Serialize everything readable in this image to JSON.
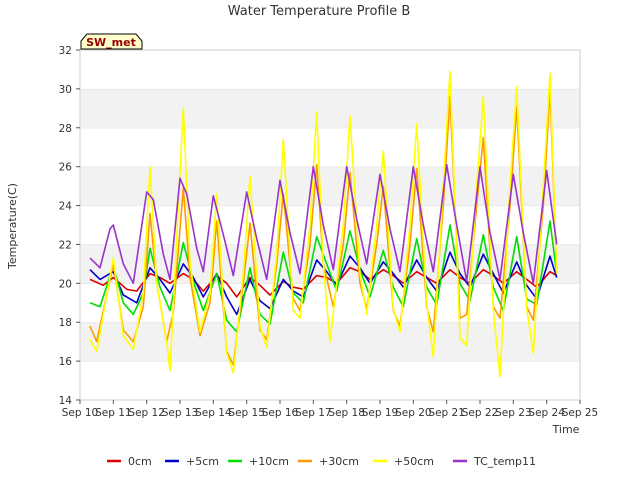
{
  "chart_data": {
    "type": "line",
    "title": "Water Temperature Profile B",
    "xlabel": "Time",
    "ylabel": "Temperature(C)",
    "site_label": "SW_met",
    "xlim": [
      10,
      25
    ],
    "ylim": [
      14,
      32
    ],
    "x_ticks": [
      10,
      11,
      12,
      13,
      14,
      15,
      16,
      17,
      18,
      19,
      20,
      21,
      22,
      23,
      24,
      25
    ],
    "x_tick_labels": [
      "Sep 10",
      "Sep 11",
      "Sep 12",
      "Sep 13",
      "Sep 14",
      "Sep 15",
      "Sep 16",
      "Sep 17",
      "Sep 18",
      "Sep 19",
      "Sep 20",
      "Sep 21",
      "Sep 22",
      "Sep 23",
      "Sep 24",
      "Sep 25"
    ],
    "y_ticks": [
      14,
      16,
      18,
      20,
      22,
      24,
      26,
      28,
      30,
      32
    ],
    "y_tick_labels": [
      "14",
      "16",
      "18",
      "20",
      "22",
      "24",
      "26",
      "28",
      "30",
      "32"
    ],
    "grid": "horizontal bands",
    "legend_position": "bottom",
    "x_unit": "day of September",
    "series": [
      {
        "name": "0cm",
        "color": "#dd0000",
        "points": [
          [
            10.3,
            20.2
          ],
          [
            10.7,
            19.9
          ],
          [
            11.0,
            20.3
          ],
          [
            11.4,
            19.7
          ],
          [
            11.7,
            19.6
          ],
          [
            12.1,
            20.5
          ],
          [
            12.4,
            20.3
          ],
          [
            12.7,
            20.0
          ],
          [
            13.1,
            20.5
          ],
          [
            13.4,
            20.2
          ],
          [
            13.7,
            19.6
          ],
          [
            14.1,
            20.4
          ],
          [
            14.4,
            20.0
          ],
          [
            14.7,
            19.3
          ],
          [
            15.1,
            20.3
          ],
          [
            15.4,
            19.9
          ],
          [
            15.7,
            19.4
          ],
          [
            16.1,
            20.1
          ],
          [
            16.4,
            19.8
          ],
          [
            16.7,
            19.7
          ],
          [
            17.1,
            20.4
          ],
          [
            17.4,
            20.3
          ],
          [
            17.7,
            20.0
          ],
          [
            18.1,
            20.8
          ],
          [
            18.4,
            20.6
          ],
          [
            18.7,
            20.2
          ],
          [
            19.1,
            20.7
          ],
          [
            19.4,
            20.4
          ],
          [
            19.7,
            20.0
          ],
          [
            20.1,
            20.6
          ],
          [
            20.4,
            20.3
          ],
          [
            20.7,
            20.0
          ],
          [
            21.1,
            20.7
          ],
          [
            21.4,
            20.3
          ],
          [
            21.7,
            20.0
          ],
          [
            22.1,
            20.7
          ],
          [
            22.4,
            20.4
          ],
          [
            22.7,
            20.0
          ],
          [
            23.1,
            20.6
          ],
          [
            23.4,
            20.2
          ],
          [
            23.7,
            19.8
          ],
          [
            24.1,
            20.6
          ],
          [
            24.3,
            20.4
          ]
        ]
      },
      {
        "name": "+5cm",
        "color": "#0000cc",
        "points": [
          [
            10.3,
            20.7
          ],
          [
            10.6,
            20.2
          ],
          [
            11.0,
            20.6
          ],
          [
            11.3,
            19.4
          ],
          [
            11.7,
            19.0
          ],
          [
            12.1,
            20.8
          ],
          [
            12.4,
            20.2
          ],
          [
            12.7,
            19.5
          ],
          [
            13.1,
            21.0
          ],
          [
            13.4,
            20.3
          ],
          [
            13.7,
            19.3
          ],
          [
            14.1,
            20.5
          ],
          [
            14.4,
            19.3
          ],
          [
            14.7,
            18.4
          ],
          [
            15.1,
            20.2
          ],
          [
            15.4,
            19.1
          ],
          [
            15.7,
            18.7
          ],
          [
            16.1,
            20.2
          ],
          [
            16.4,
            19.6
          ],
          [
            16.7,
            19.3
          ],
          [
            17.1,
            21.2
          ],
          [
            17.4,
            20.6
          ],
          [
            17.7,
            19.9
          ],
          [
            18.1,
            21.4
          ],
          [
            18.4,
            20.8
          ],
          [
            18.7,
            20.0
          ],
          [
            19.1,
            21.1
          ],
          [
            19.4,
            20.5
          ],
          [
            19.7,
            19.8
          ],
          [
            20.1,
            21.2
          ],
          [
            20.4,
            20.3
          ],
          [
            20.7,
            19.6
          ],
          [
            21.1,
            21.6
          ],
          [
            21.4,
            20.5
          ],
          [
            21.7,
            19.8
          ],
          [
            22.1,
            21.5
          ],
          [
            22.4,
            20.5
          ],
          [
            22.7,
            19.5
          ],
          [
            23.1,
            21.1
          ],
          [
            23.4,
            19.9
          ],
          [
            23.7,
            19.2
          ],
          [
            24.1,
            21.4
          ],
          [
            24.3,
            20.3
          ]
        ]
      },
      {
        "name": "+10cm",
        "color": "#00dd00",
        "points": [
          [
            10.3,
            19.0
          ],
          [
            10.6,
            18.8
          ],
          [
            11.0,
            20.9
          ],
          [
            11.3,
            19.0
          ],
          [
            11.6,
            18.4
          ],
          [
            11.9,
            19.5
          ],
          [
            12.1,
            21.8
          ],
          [
            12.4,
            19.8
          ],
          [
            12.7,
            18.6
          ],
          [
            13.1,
            22.1
          ],
          [
            13.4,
            20.1
          ],
          [
            13.7,
            18.6
          ],
          [
            14.1,
            20.5
          ],
          [
            14.4,
            18.1
          ],
          [
            14.7,
            17.5
          ],
          [
            15.1,
            20.8
          ],
          [
            15.4,
            18.4
          ],
          [
            15.7,
            17.9
          ],
          [
            16.1,
            21.6
          ],
          [
            16.4,
            19.5
          ],
          [
            16.7,
            19.0
          ],
          [
            17.1,
            22.4
          ],
          [
            17.4,
            21.0
          ],
          [
            17.7,
            19.6
          ],
          [
            18.1,
            22.7
          ],
          [
            18.4,
            20.7
          ],
          [
            18.7,
            19.3
          ],
          [
            19.1,
            21.7
          ],
          [
            19.4,
            19.8
          ],
          [
            19.7,
            18.8
          ],
          [
            20.1,
            22.3
          ],
          [
            20.4,
            19.8
          ],
          [
            20.7,
            18.9
          ],
          [
            21.1,
            23.0
          ],
          [
            21.4,
            20.0
          ],
          [
            21.7,
            19.1
          ],
          [
            22.1,
            22.5
          ],
          [
            22.4,
            19.8
          ],
          [
            22.7,
            18.6
          ],
          [
            23.1,
            22.4
          ],
          [
            23.4,
            19.2
          ],
          [
            23.7,
            18.9
          ],
          [
            24.1,
            23.2
          ],
          [
            24.3,
            20.5
          ]
        ]
      },
      {
        "name": "+30cm",
        "color": "#ff9900",
        "points": [
          [
            10.3,
            17.8
          ],
          [
            10.5,
            17.0
          ],
          [
            11.0,
            21.0
          ],
          [
            11.3,
            17.6
          ],
          [
            11.6,
            17.0
          ],
          [
            11.9,
            18.8
          ],
          [
            12.1,
            23.6
          ],
          [
            12.3,
            20.0
          ],
          [
            12.6,
            17.0
          ],
          [
            12.8,
            18.5
          ],
          [
            13.1,
            24.9
          ],
          [
            13.3,
            20.3
          ],
          [
            13.6,
            17.3
          ],
          [
            13.9,
            19.0
          ],
          [
            14.1,
            23.2
          ],
          [
            14.4,
            16.5
          ],
          [
            14.6,
            15.8
          ],
          [
            14.9,
            20.0
          ],
          [
            15.1,
            23.1
          ],
          [
            15.4,
            17.6
          ],
          [
            15.6,
            17.1
          ],
          [
            15.9,
            21.0
          ],
          [
            16.1,
            24.6
          ],
          [
            16.4,
            19.2
          ],
          [
            16.6,
            18.6
          ],
          [
            16.9,
            22.0
          ],
          [
            17.1,
            26.1
          ],
          [
            17.3,
            21.0
          ],
          [
            17.6,
            18.8
          ],
          [
            17.9,
            22.0
          ],
          [
            18.1,
            25.7
          ],
          [
            18.4,
            20.0
          ],
          [
            18.6,
            18.7
          ],
          [
            18.9,
            22.0
          ],
          [
            19.1,
            25.0
          ],
          [
            19.4,
            18.6
          ],
          [
            19.6,
            17.8
          ],
          [
            19.9,
            22.0
          ],
          [
            20.1,
            25.9
          ],
          [
            20.4,
            18.8
          ],
          [
            20.6,
            17.5
          ],
          [
            20.9,
            24.0
          ],
          [
            21.1,
            29.6
          ],
          [
            21.4,
            18.2
          ],
          [
            21.6,
            18.4
          ],
          [
            21.9,
            24.0
          ],
          [
            22.1,
            27.5
          ],
          [
            22.4,
            18.8
          ],
          [
            22.6,
            18.2
          ],
          [
            22.9,
            24.0
          ],
          [
            23.1,
            29.1
          ],
          [
            23.4,
            18.8
          ],
          [
            23.6,
            18.1
          ],
          [
            23.9,
            24.0
          ],
          [
            24.1,
            30.0
          ],
          [
            24.3,
            20.5
          ]
        ]
      },
      {
        "name": "+50cm",
        "color": "#ffff00",
        "points": [
          [
            10.3,
            17.1
          ],
          [
            10.5,
            16.5
          ],
          [
            11.0,
            21.3
          ],
          [
            11.3,
            17.3
          ],
          [
            11.6,
            16.6
          ],
          [
            11.9,
            19.5
          ],
          [
            12.1,
            26.0
          ],
          [
            12.3,
            20.0
          ],
          [
            12.6,
            17.0
          ],
          [
            12.7,
            15.5
          ],
          [
            13.1,
            29.0
          ],
          [
            13.3,
            21.0
          ],
          [
            13.6,
            17.5
          ],
          [
            13.9,
            19.5
          ],
          [
            14.1,
            24.6
          ],
          [
            14.4,
            16.4
          ],
          [
            14.6,
            15.4
          ],
          [
            14.9,
            20.5
          ],
          [
            15.1,
            25.5
          ],
          [
            15.4,
            17.8
          ],
          [
            15.6,
            16.7
          ],
          [
            15.9,
            21.5
          ],
          [
            16.1,
            27.4
          ],
          [
            16.4,
            18.6
          ],
          [
            16.6,
            18.2
          ],
          [
            16.9,
            23.0
          ],
          [
            17.1,
            28.8
          ],
          [
            17.3,
            21.0
          ],
          [
            17.5,
            17.0
          ],
          [
            17.9,
            23.0
          ],
          [
            18.1,
            28.6
          ],
          [
            18.4,
            20.5
          ],
          [
            18.6,
            18.4
          ],
          [
            18.9,
            23.0
          ],
          [
            19.1,
            26.8
          ],
          [
            19.4,
            18.7
          ],
          [
            19.6,
            17.5
          ],
          [
            19.9,
            23.0
          ],
          [
            20.1,
            28.2
          ],
          [
            20.4,
            19.0
          ],
          [
            20.6,
            16.2
          ],
          [
            20.9,
            25.0
          ],
          [
            21.1,
            30.9
          ],
          [
            21.4,
            17.2
          ],
          [
            21.6,
            16.8
          ],
          [
            21.9,
            25.0
          ],
          [
            22.1,
            29.6
          ],
          [
            22.4,
            18.6
          ],
          [
            22.6,
            15.2
          ],
          [
            22.9,
            25.0
          ],
          [
            23.1,
            30.1
          ],
          [
            23.4,
            18.7
          ],
          [
            23.6,
            16.4
          ],
          [
            23.9,
            25.0
          ],
          [
            24.1,
            30.8
          ],
          [
            24.3,
            20.5
          ]
        ]
      },
      {
        "name": "TC_temp11",
        "color": "#9933cc",
        "points": [
          [
            10.3,
            21.3
          ],
          [
            10.6,
            20.8
          ],
          [
            10.9,
            22.8
          ],
          [
            11.0,
            23.0
          ],
          [
            11.3,
            21.0
          ],
          [
            11.6,
            20.0
          ],
          [
            12.0,
            24.7
          ],
          [
            12.2,
            24.3
          ],
          [
            12.5,
            21.5
          ],
          [
            12.7,
            20.2
          ],
          [
            13.0,
            25.4
          ],
          [
            13.2,
            24.6
          ],
          [
            13.5,
            21.8
          ],
          [
            13.7,
            20.6
          ],
          [
            14.0,
            24.5
          ],
          [
            14.3,
            22.5
          ],
          [
            14.6,
            20.4
          ],
          [
            15.0,
            24.7
          ],
          [
            15.3,
            22.3
          ],
          [
            15.6,
            20.2
          ],
          [
            16.0,
            25.3
          ],
          [
            16.3,
            22.6
          ],
          [
            16.6,
            20.5
          ],
          [
            17.0,
            26.0
          ],
          [
            17.3,
            23.0
          ],
          [
            17.6,
            20.7
          ],
          [
            18.0,
            26.0
          ],
          [
            18.3,
            23.3
          ],
          [
            18.6,
            21.0
          ],
          [
            19.0,
            25.6
          ],
          [
            19.3,
            22.8
          ],
          [
            19.6,
            20.6
          ],
          [
            20.0,
            26.0
          ],
          [
            20.3,
            23.0
          ],
          [
            20.6,
            20.6
          ],
          [
            21.0,
            26.1
          ],
          [
            21.3,
            23.0
          ],
          [
            21.6,
            20.1
          ],
          [
            22.0,
            26.0
          ],
          [
            22.3,
            22.6
          ],
          [
            22.6,
            20.2
          ],
          [
            23.0,
            25.6
          ],
          [
            23.3,
            22.6
          ],
          [
            23.6,
            20.0
          ],
          [
            24.0,
            25.8
          ],
          [
            24.3,
            22.0
          ]
        ]
      }
    ]
  }
}
